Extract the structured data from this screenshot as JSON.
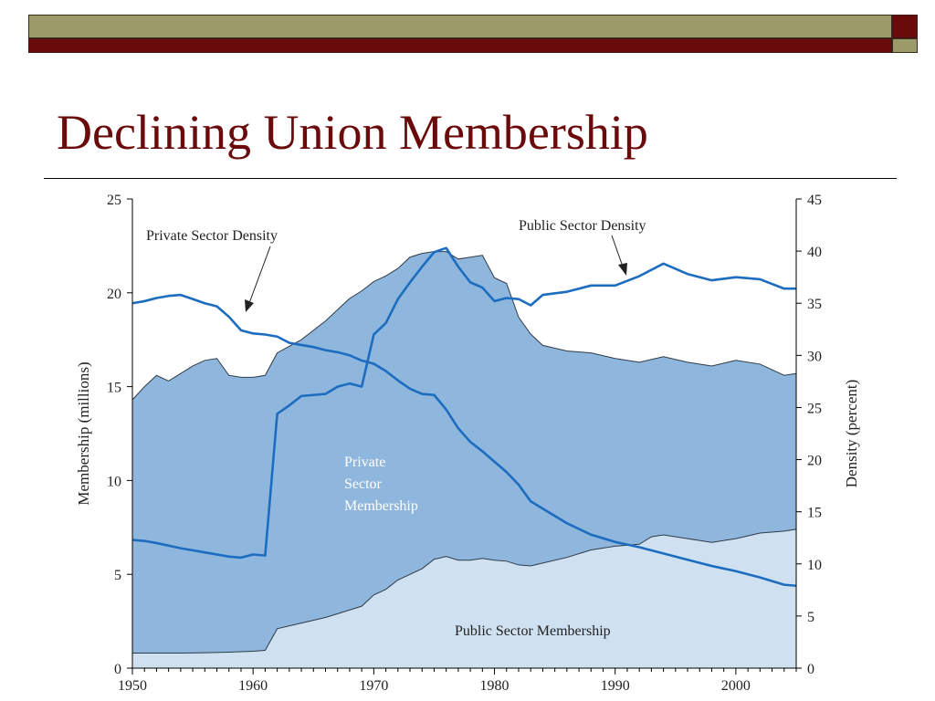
{
  "slide": {
    "title": "Declining Union Membership"
  },
  "colors": {
    "private_membership_fill": "#8fb7dd",
    "public_membership_fill": "#cfe0f1",
    "density_line": "#1c6cc0",
    "title": "#6b0a0a",
    "deco_olive": "#9c9a68",
    "deco_maroon": "#6b0a0a"
  },
  "chart_data": {
    "type": "area",
    "x_label": "",
    "y_left_label": "Membership (millions)",
    "y_right_label": "Density (percent)",
    "xlim": [
      1950,
      2005
    ],
    "ylim_left": [
      0,
      25
    ],
    "ylim_right": [
      0,
      45
    ],
    "x_ticks": [
      1950,
      1960,
      1970,
      1980,
      1990,
      2000
    ],
    "y_left_ticks": [
      0,
      5,
      10,
      15,
      20,
      25
    ],
    "y_right_ticks": [
      0,
      5,
      10,
      15,
      20,
      25,
      30,
      35,
      40,
      45
    ],
    "grid": false,
    "series": [
      {
        "name": "Public Sector Membership",
        "axis": "left",
        "kind": "area",
        "x": [
          1950,
          1952,
          1954,
          1956,
          1958,
          1960,
          1961,
          1962,
          1964,
          1966,
          1968,
          1969,
          1970,
          1971,
          1972,
          1974,
          1975,
          1976,
          1977,
          1978,
          1979,
          1980,
          1981,
          1982,
          1983,
          1984,
          1986,
          1988,
          1990,
          1992,
          1993,
          1994,
          1996,
          1998,
          2000,
          2002,
          2004,
          2005
        ],
        "values": [
          0.8,
          0.8,
          0.8,
          0.82,
          0.85,
          0.9,
          0.95,
          2.1,
          2.4,
          2.7,
          3.1,
          3.3,
          3.9,
          4.2,
          4.7,
          5.3,
          5.8,
          5.95,
          5.75,
          5.75,
          5.85,
          5.75,
          5.7,
          5.5,
          5.45,
          5.6,
          5.9,
          6.3,
          6.5,
          6.6,
          7.0,
          7.1,
          6.9,
          6.7,
          6.9,
          7.2,
          7.3,
          7.4
        ]
      },
      {
        "name": "Private Sector Membership",
        "axis": "left",
        "kind": "stacked-area-total",
        "x": [
          1950,
          1951,
          1952,
          1953,
          1954,
          1955,
          1956,
          1957,
          1958,
          1959,
          1960,
          1961,
          1962,
          1964,
          1966,
          1968,
          1969,
          1970,
          1971,
          1972,
          1973,
          1974,
          1975,
          1976,
          1977,
          1978,
          1979,
          1980,
          1981,
          1982,
          1983,
          1984,
          1986,
          1988,
          1990,
          1992,
          1994,
          1996,
          1998,
          2000,
          2002,
          2004,
          2005
        ],
        "values": [
          14.3,
          15.0,
          15.6,
          15.3,
          15.7,
          16.1,
          16.4,
          16.5,
          15.6,
          15.5,
          15.5,
          15.6,
          16.8,
          17.5,
          18.5,
          19.7,
          20.1,
          20.6,
          20.9,
          21.3,
          21.9,
          22.1,
          22.2,
          22.2,
          21.8,
          21.9,
          22.0,
          20.8,
          20.5,
          18.7,
          17.8,
          17.2,
          16.9,
          16.8,
          16.5,
          16.3,
          16.6,
          16.3,
          16.1,
          16.4,
          16.2,
          15.6,
          15.7
        ]
      },
      {
        "name": "Private Sector Density",
        "axis": "right",
        "kind": "line",
        "x": [
          1950,
          1951,
          1952,
          1953,
          1954,
          1955,
          1956,
          1957,
          1958,
          1959,
          1960,
          1961,
          1962,
          1963,
          1964,
          1965,
          1966,
          1967,
          1968,
          1969,
          1970,
          1971,
          1972,
          1973,
          1974,
          1975,
          1976,
          1977,
          1978,
          1979,
          1980,
          1981,
          1982,
          1983,
          1984,
          1986,
          1988,
          1990,
          1992,
          1994,
          1996,
          1998,
          2000,
          2002,
          2004,
          2005
        ],
        "values": [
          35.0,
          35.2,
          35.5,
          35.7,
          35.8,
          35.4,
          35.0,
          34.7,
          33.7,
          32.4,
          32.1,
          32.0,
          31.8,
          31.2,
          31.0,
          30.8,
          30.5,
          30.3,
          30.0,
          29.5,
          29.2,
          28.5,
          27.6,
          26.8,
          26.3,
          26.2,
          24.8,
          23.0,
          21.7,
          20.8,
          19.8,
          18.8,
          17.6,
          16.0,
          15.3,
          13.9,
          12.8,
          12.1,
          11.6,
          11.0,
          10.4,
          9.8,
          9.3,
          8.7,
          8.0,
          7.9
        ]
      },
      {
        "name": "Public Sector Density",
        "axis": "right",
        "kind": "line",
        "x": [
          1950,
          1951,
          1952,
          1954,
          1956,
          1958,
          1959,
          1960,
          1961,
          1962,
          1963,
          1964,
          1965,
          1966,
          1967,
          1968,
          1969,
          1970,
          1971,
          1972,
          1973,
          1974,
          1975,
          1976,
          1977,
          1978,
          1979,
          1980,
          1981,
          1982,
          1983,
          1984,
          1986,
          1988,
          1990,
          1992,
          1994,
          1996,
          1998,
          2000,
          2002,
          2004,
          2005
        ],
        "values": [
          12.3,
          12.2,
          12.0,
          11.5,
          11.1,
          10.7,
          10.6,
          10.9,
          10.8,
          24.4,
          25.2,
          26.1,
          26.2,
          26.3,
          27.0,
          27.3,
          27.0,
          32.0,
          33.1,
          35.4,
          37.0,
          38.5,
          39.9,
          40.3,
          38.5,
          37.0,
          36.5,
          35.2,
          35.5,
          35.4,
          34.8,
          35.8,
          36.1,
          36.7,
          36.7,
          37.6,
          38.8,
          37.8,
          37.2,
          37.5,
          37.3,
          36.4,
          36.4
        ]
      }
    ],
    "annotations": [
      "Private Sector Density",
      "Public Sector Density",
      "Private Sector Membership",
      "Public Sector Membership"
    ],
    "annotation_lines": {
      "private_area": [
        "Private",
        "Sector",
        "Membership"
      ]
    }
  }
}
